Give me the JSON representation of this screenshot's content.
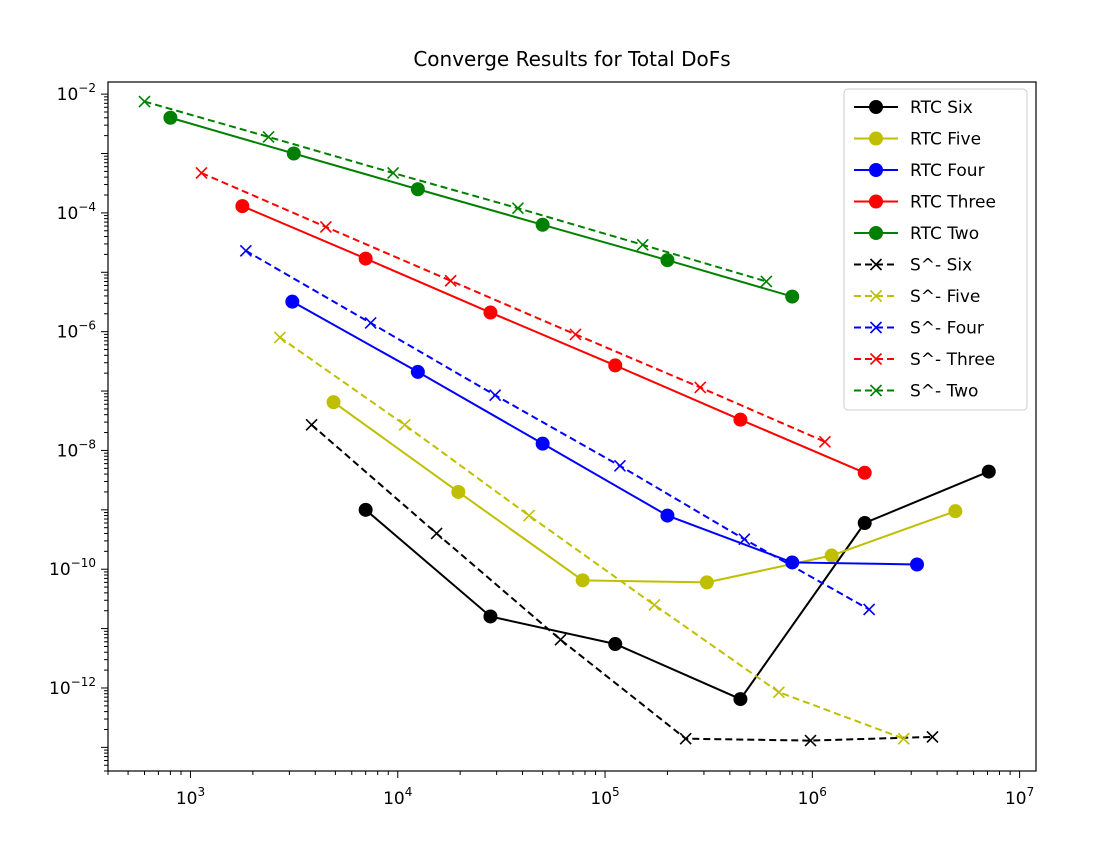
{
  "chart_data": {
    "type": "line",
    "title": "Converge Results for Total DoFs",
    "xlabel": "",
    "ylabel": "",
    "xscale": "log",
    "yscale": "log",
    "xlim": [
      400,
      12000000
    ],
    "ylim": [
      4e-14,
      0.016
    ],
    "x_ticks": [
      {
        "value": 1000,
        "base": "10",
        "exp": "3"
      },
      {
        "value": 10000,
        "base": "10",
        "exp": "4"
      },
      {
        "value": 100000,
        "base": "10",
        "exp": "5"
      },
      {
        "value": 1000000,
        "base": "10",
        "exp": "6"
      },
      {
        "value": 10000000,
        "base": "10",
        "exp": "7"
      }
    ],
    "y_ticks": [
      {
        "value": 0.01,
        "base": "10",
        "exp": "−2"
      },
      {
        "value": 0.0001,
        "base": "10",
        "exp": "−4"
      },
      {
        "value": 1e-06,
        "base": "10",
        "exp": "−6"
      },
      {
        "value": 1e-08,
        "base": "10",
        "exp": "−8"
      },
      {
        "value": 1e-10,
        "base": "10",
        "exp": "−10"
      },
      {
        "value": 1e-12,
        "base": "10",
        "exp": "−12"
      }
    ],
    "grid": false,
    "legend": "top-right",
    "series": [
      {
        "name": "RTC Six",
        "color": "#000000",
        "style": "solid",
        "marker": "circle",
        "x": [
          7000,
          28000,
          112000,
          450000,
          1790000,
          7100000
        ],
        "y": [
          1e-09,
          1.6e-11,
          5.5e-12,
          6.5e-13,
          6e-10,
          4.4e-09
        ]
      },
      {
        "name": "RTC Five",
        "color": "#bfbf00",
        "style": "solid",
        "marker": "circle",
        "x": [
          4900,
          19600,
          78000,
          310000,
          1240000,
          4900000
        ],
        "y": [
          6.5e-08,
          2e-09,
          6.5e-11,
          6e-11,
          1.7e-10,
          9.5e-10
        ]
      },
      {
        "name": "RTC Four",
        "color": "#0000ff",
        "style": "solid",
        "marker": "circle",
        "x": [
          3100,
          12500,
          50000,
          200000,
          800000,
          3200000
        ],
        "y": [
          3.2e-06,
          2.1e-07,
          1.3e-08,
          8e-10,
          1.3e-10,
          1.2e-10
        ]
      },
      {
        "name": "RTC Three",
        "color": "#ff0000",
        "style": "solid",
        "marker": "circle",
        "x": [
          1780,
          7000,
          28000,
          112000,
          450000,
          1790000
        ],
        "y": [
          0.00013,
          1.7e-05,
          2.1e-06,
          2.7e-07,
          3.3e-08,
          4.2e-09
        ]
      },
      {
        "name": "RTC Two",
        "color": "#008000",
        "style": "solid",
        "marker": "circle",
        "x": [
          800,
          3150,
          12500,
          50000,
          200000,
          800000
        ],
        "y": [
          0.004,
          0.001,
          0.00025,
          6.3e-05,
          1.6e-05,
          3.9e-06
        ]
      },
      {
        "name": "S^- Six",
        "color": "#000000",
        "style": "dashed",
        "marker": "x",
        "x": [
          3840,
          15400,
          61000,
          245000,
          980000,
          3800000
        ],
        "y": [
          2.7e-08,
          4e-10,
          6.5e-12,
          1.4e-13,
          1.3e-13,
          1.5e-13
        ]
      },
      {
        "name": "S^- Five",
        "color": "#bfbf00",
        "style": "dashed",
        "marker": "x",
        "x": [
          2700,
          10800,
          43000,
          173000,
          690000,
          2760000
        ],
        "y": [
          8e-07,
          2.7e-08,
          8e-10,
          2.5e-11,
          8.5e-13,
          1.4e-13
        ]
      },
      {
        "name": "S^- Four",
        "color": "#0000ff",
        "style": "dashed",
        "marker": "x",
        "x": [
          1850,
          7400,
          29500,
          118000,
          470000,
          1880000
        ],
        "y": [
          2.3e-05,
          1.4e-06,
          8.5e-08,
          5.5e-09,
          3.2e-10,
          2.1e-11
        ]
      },
      {
        "name": "S^- Three",
        "color": "#ff0000",
        "style": "dashed",
        "marker": "x",
        "x": [
          1130,
          4500,
          18000,
          72000,
          288000,
          1150000
        ],
        "y": [
          0.00047,
          5.8e-05,
          7.2e-06,
          9e-07,
          1.15e-07,
          1.4e-08
        ]
      },
      {
        "name": "S^- Two",
        "color": "#008000",
        "style": "dashed",
        "marker": "x",
        "x": [
          600,
          2380,
          9500,
          38000,
          152000,
          600000
        ],
        "y": [
          0.0075,
          0.0019,
          0.00047,
          0.00012,
          2.9e-05,
          7e-06
        ]
      }
    ]
  }
}
